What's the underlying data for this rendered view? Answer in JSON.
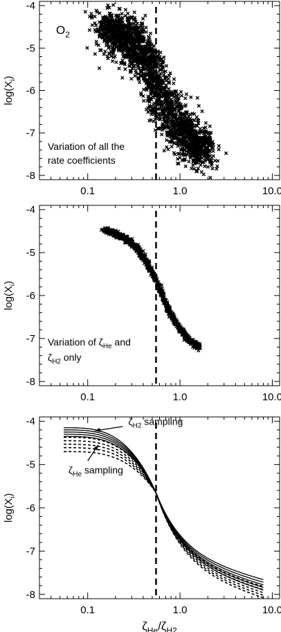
{
  "chart_data": [
    {
      "type": "scatter",
      "panel": "top",
      "ylabel": "log(X",
      "ylabel_sub": "i",
      "ylabel_close": ")",
      "ylim": [
        -8.1,
        -3.9
      ],
      "xlim": [
        0.03,
        12
      ],
      "xscale": "log",
      "xticks": [
        "0.1",
        "1.0",
        "10.0"
      ],
      "yticks": [
        "-4",
        "-5",
        "-6",
        "-7",
        "-8"
      ],
      "species_label": "O",
      "species_sub": "2",
      "annotation_lines": [
        "Variation of all the",
        "rate coefficients"
      ],
      "vline_x": 0.55,
      "cloud": {
        "x_start": 0.15,
        "x_end": 1.9,
        "y_start": -4.5,
        "y_end": -7.45,
        "x_mid": 0.6,
        "spread": 0.45,
        "n_points": 2200,
        "point_glyph": "×"
      },
      "color": "#000000"
    },
    {
      "type": "scatter",
      "panel": "middle",
      "ylabel": "log(X",
      "ylabel_sub": "i",
      "ylabel_close": ")",
      "ylim": [
        -8.1,
        -3.9
      ],
      "xlim": [
        0.03,
        12
      ],
      "xscale": "log",
      "xticks": [
        "0.1",
        "1.0",
        "10.0"
      ],
      "yticks": [
        "-4",
        "-5",
        "-6",
        "-7",
        "-8"
      ],
      "annotation_lines": [
        {
          "pre": "Variation of ",
          "zeta": "ζ",
          "sub": "He",
          "post": " and"
        },
        {
          "pre": "",
          "zeta": "ζ",
          "sub": "H2",
          "post": " only"
        }
      ],
      "vline_x": 0.55,
      "cloud": {
        "x_start": 0.15,
        "x_end": 1.65,
        "y_start": -4.45,
        "y_end": -7.32,
        "x_mid": 0.62,
        "spread": 0.06,
        "n_points": 900,
        "point_glyph": "×"
      },
      "color": "#000000"
    },
    {
      "type": "line",
      "panel": "bottom",
      "ylabel": "log(X",
      "ylabel_sub": "i",
      "ylabel_close": ")",
      "xlabel_parts": {
        "zeta1": "ζ",
        "sub1": "He",
        "slash": "/",
        "zeta2": "ζ",
        "sub2": "H2"
      },
      "ylim": [
        -8.1,
        -3.9
      ],
      "xlim": [
        0.03,
        12
      ],
      "xscale": "log",
      "xticks": [
        "0.1",
        "1.0",
        "10.0"
      ],
      "yticks": [
        "-4",
        "-5",
        "-6",
        "-7",
        "-8"
      ],
      "vline_x": 0.55,
      "pivot": {
        "x": 0.55,
        "y": -5.65
      },
      "solid_series": [
        {
          "start": -4.15,
          "end": -7.9
        },
        {
          "start": -4.2,
          "end": -7.84
        },
        {
          "start": -4.25,
          "end": -7.78
        },
        {
          "start": -4.3,
          "end": -7.72
        },
        {
          "start": -4.35,
          "end": -7.66
        }
      ],
      "dashed_series": [
        {
          "start": -4.37,
          "end": -7.82
        },
        {
          "start": -4.45,
          "end": -7.89
        },
        {
          "start": -4.53,
          "end": -7.96
        },
        {
          "start": -4.61,
          "end": -8.02
        },
        {
          "start": -4.7,
          "end": -8.08
        }
      ],
      "x_range": [
        0.055,
        8.0
      ],
      "annotations": [
        {
          "zeta": "ζ",
          "sub": "H2",
          "text": " sampling",
          "arrow_to": {
            "x": 0.12,
            "y": -4.22
          },
          "arrow_from": {
            "x": 0.24,
            "y": -4.12
          }
        },
        {
          "zeta": "ζ",
          "sub": "He",
          "text": " sampling",
          "arrow_to": {
            "x": 0.13,
            "y": -4.55
          },
          "arrow_from": {
            "x": 0.1,
            "y": -4.85
          }
        }
      ],
      "color": "#000000"
    }
  ]
}
